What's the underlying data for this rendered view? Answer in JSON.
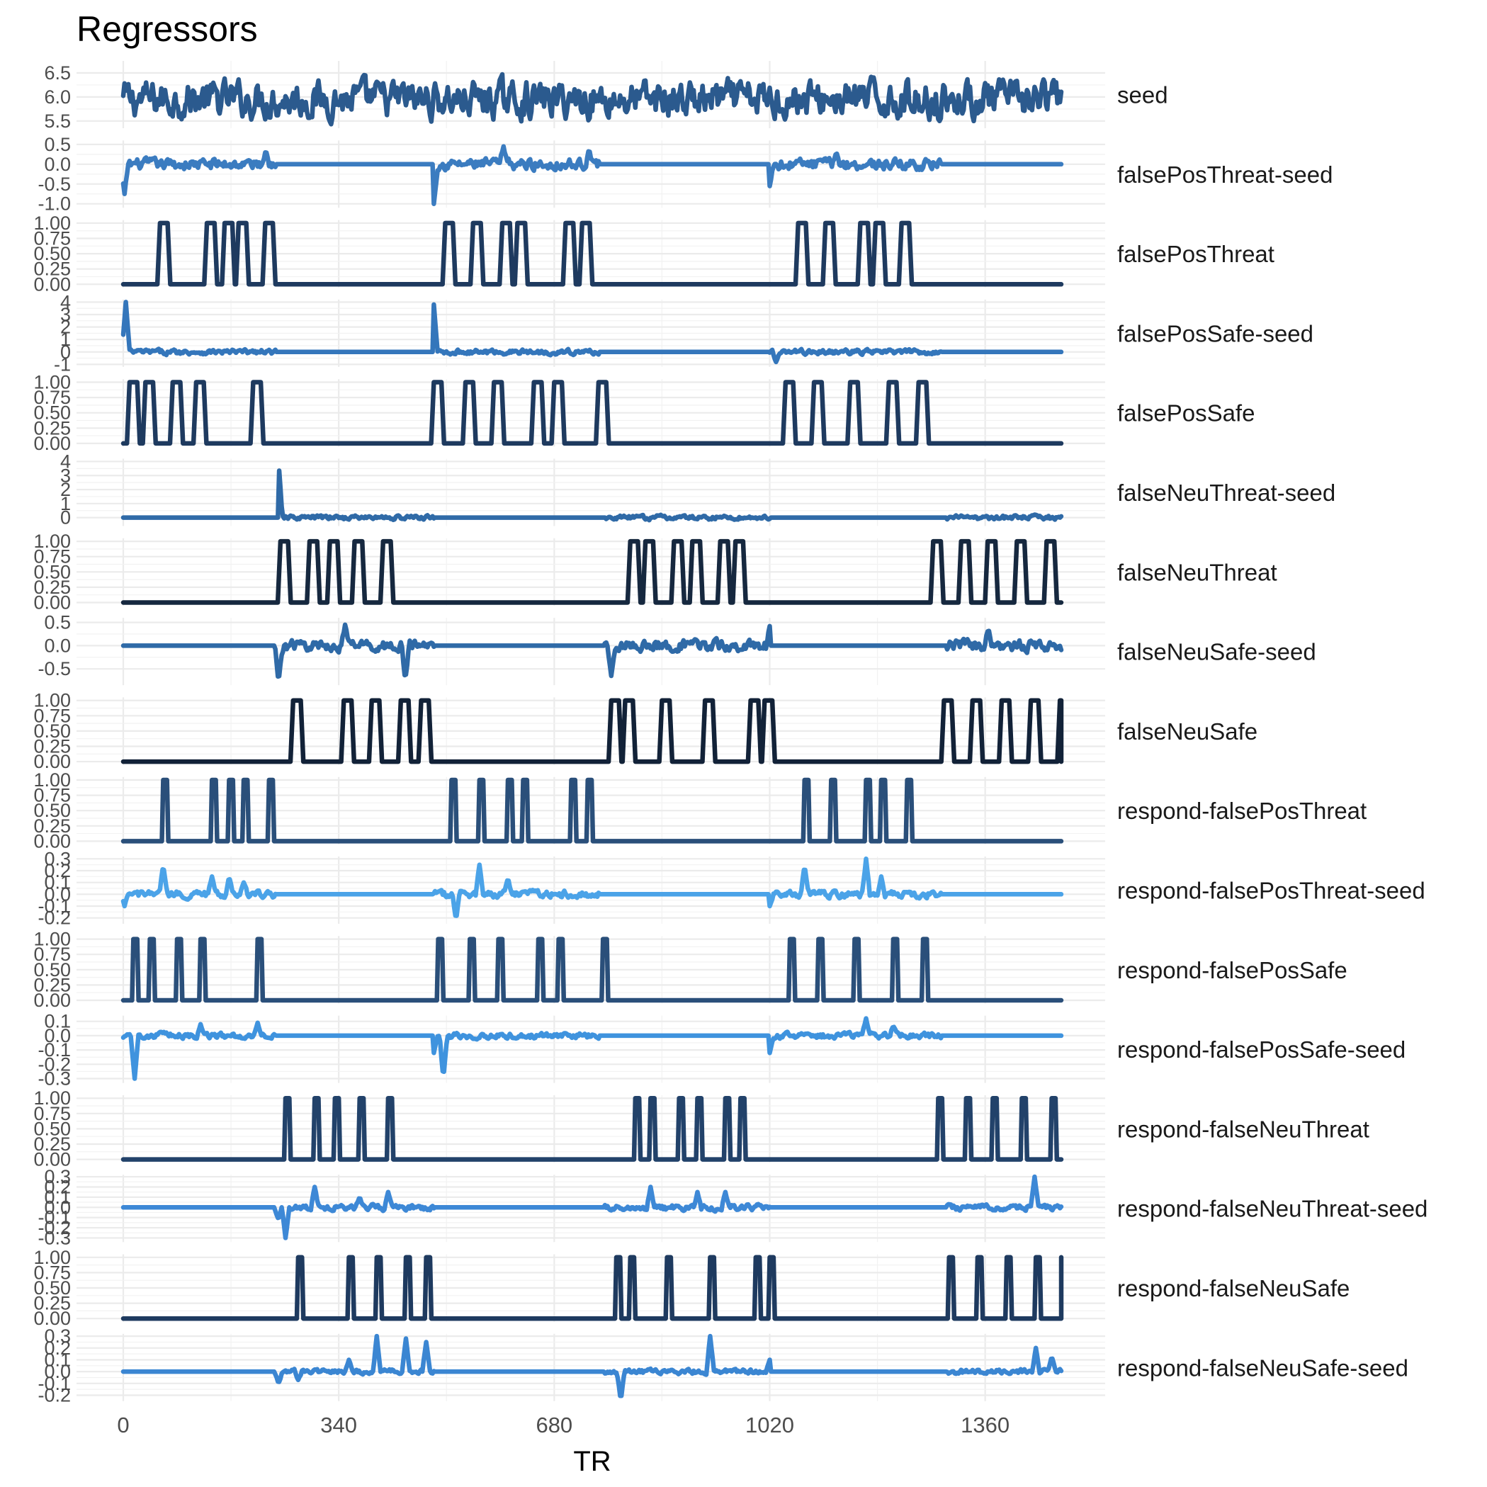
{
  "chart_data": {
    "type": "line",
    "title": "Regressors",
    "xlabel": "TR",
    "ylabel": "",
    "xlim": [
      0,
      1500
    ],
    "x_ticks": [
      0,
      340,
      680,
      1020,
      1360
    ],
    "x_tick_labels": [
      "0",
      "340",
      "680",
      "1020",
      "1360"
    ],
    "grid": true,
    "legend": "none",
    "facets": [
      {
        "name": "seed",
        "kind": "noise",
        "color": "#2b5a8e",
        "ylim": [
          5.35,
          6.75
        ],
        "y_ticks": [
          5.5,
          6.0,
          6.5
        ],
        "y_tick_labels": [
          "5.5",
          "6.0",
          "6.5"
        ],
        "base": 5.95,
        "amp": 0.38,
        "spans": [
          [
            0,
            1490
          ]
        ]
      },
      {
        "name": "falsePosThreat-seed",
        "kind": "noise",
        "color": "#3b7cc0",
        "ylim": [
          -1.1,
          0.6
        ],
        "y_ticks": [
          -1.0,
          -0.5,
          0.0,
          0.5
        ],
        "y_tick_labels": [
          "-1.0",
          "-0.5",
          "0.0",
          "0.5"
        ],
        "base": 0,
        "amp": 0.14,
        "spans": [
          [
            0,
            240
          ],
          [
            490,
            750
          ],
          [
            1020,
            1290
          ]
        ],
        "spikes": [
          [
            2,
            -0.75
          ],
          [
            490,
            -1.0
          ],
          [
            1020,
            -0.55
          ],
          [
            225,
            0.35
          ],
          [
            600,
            0.45
          ],
          [
            735,
            0.38
          ],
          [
            1125,
            0.32
          ]
        ]
      },
      {
        "name": "falsePosThreat",
        "kind": "pulse",
        "color": "#1e3a5f",
        "ylim": [
          -0.05,
          1.05
        ],
        "y_ticks": [
          0.0,
          0.25,
          0.5,
          0.75,
          1.0
        ],
        "y_tick_labels": [
          "0.00",
          "0.25",
          "0.50",
          "0.75",
          "1.00"
        ],
        "pulse_width": 12,
        "events": [
          58,
          132,
          160,
          182,
          224,
          508,
          552,
          598,
          622,
          698,
          724,
          1065,
          1108,
          1163,
          1187,
          1228
        ]
      },
      {
        "name": "falsePosSafe-seed",
        "kind": "noise",
        "color": "#3476bb",
        "ylim": [
          -1.2,
          4.2
        ],
        "y_ticks": [
          -1,
          0,
          1,
          2,
          3,
          4
        ],
        "y_tick_labels": [
          "-1",
          "0",
          "1",
          "2",
          "3",
          "4"
        ],
        "base": 0,
        "amp": 0.2,
        "spans": [
          [
            0,
            240
          ],
          [
            490,
            750
          ],
          [
            1020,
            1290
          ]
        ],
        "spikes": [
          [
            4,
            4.0
          ],
          [
            490,
            3.8
          ],
          [
            1030,
            -0.8
          ]
        ]
      },
      {
        "name": "falsePosSafe",
        "kind": "pulse",
        "color": "#1e3a5f",
        "ylim": [
          -0.05,
          1.05
        ],
        "y_ticks": [
          0.0,
          0.25,
          0.5,
          0.75,
          1.0
        ],
        "y_tick_labels": [
          "0.00",
          "0.25",
          "0.50",
          "0.75",
          "1.00"
        ],
        "pulse_width": 12,
        "events": [
          10,
          35,
          78,
          115,
          205,
          490,
          540,
          585,
          648,
          680,
          750,
          1045,
          1090,
          1147,
          1208,
          1255
        ]
      },
      {
        "name": "falseNeuThreat-seed",
        "kind": "noise",
        "color": "#2f6aa7",
        "ylim": [
          -0.6,
          4.2
        ],
        "y_ticks": [
          0,
          1,
          2,
          3,
          4
        ],
        "y_tick_labels": [
          "0",
          "1",
          "2",
          "3",
          "4"
        ],
        "base": 0,
        "amp": 0.16,
        "spans": [
          [
            245,
            490
          ],
          [
            760,
            1020
          ],
          [
            1300,
            1500
          ]
        ],
        "spikes": [
          [
            245,
            4.0
          ]
        ]
      },
      {
        "name": "falseNeuThreat",
        "kind": "pulse",
        "color": "#16283f",
        "ylim": [
          -0.05,
          1.05
        ],
        "y_ticks": [
          0.0,
          0.25,
          0.5,
          0.75,
          1.0
        ],
        "y_tick_labels": [
          "0.00",
          "0.25",
          "0.50",
          "0.75",
          "1.00"
        ],
        "pulse_width": 12,
        "events": [
          248,
          294,
          326,
          365,
          410,
          800,
          824,
          869,
          898,
          942,
          966,
          1278,
          1322,
          1364,
          1410,
          1457
        ]
      },
      {
        "name": "falseNeuSafe-seed",
        "kind": "noise",
        "color": "#2f6aa7",
        "ylim": [
          -0.85,
          0.6
        ],
        "y_ticks": [
          -0.5,
          0.0,
          0.5
        ],
        "y_tick_labels": [
          "-0.5",
          "0.0",
          "0.5"
        ],
        "base": 0,
        "amp": 0.12,
        "spans": [
          [
            240,
            490
          ],
          [
            760,
            1020
          ],
          [
            1300,
            1500
          ]
        ],
        "spikes": [
          [
            245,
            -0.8
          ],
          [
            445,
            -0.75
          ],
          [
            770,
            -0.65
          ],
          [
            350,
            0.45
          ],
          [
            1020,
            0.42
          ],
          [
            1365,
            0.38
          ]
        ]
      },
      {
        "name": "falseNeuSafe",
        "kind": "pulse",
        "color": "#122238",
        "ylim": [
          -0.05,
          1.05
        ],
        "y_ticks": [
          0.0,
          0.25,
          0.5,
          0.75,
          1.0
        ],
        "y_tick_labels": [
          "0.00",
          "0.25",
          "0.50",
          "0.75",
          "1.00"
        ],
        "pulse_width": 12,
        "events": [
          268,
          348,
          392,
          438,
          470,
          770,
          792,
          850,
          918,
          990,
          1012,
          1295,
          1340,
          1386,
          1432,
          1478
        ]
      },
      {
        "name": "respond-falsePosThreat",
        "kind": "pulse",
        "color": "#2a4f7a",
        "ylim": [
          -0.05,
          1.05
        ],
        "y_ticks": [
          0.0,
          0.25,
          0.5,
          0.75,
          1.0
        ],
        "y_tick_labels": [
          "0.00",
          "0.25",
          "0.50",
          "0.75",
          "1.00"
        ],
        "pulse_width": 6,
        "events": [
          63,
          140,
          167,
          190,
          230,
          518,
          562,
          607,
          631,
          707,
          733,
          1075,
          1117,
          1172,
          1196,
          1237
        ]
      },
      {
        "name": "respond-falsePosThreat-seed",
        "kind": "noise",
        "color": "#4ba3e8",
        "ylim": [
          -0.25,
          0.32
        ],
        "y_ticks": [
          -0.2,
          -0.1,
          0.0,
          0.1,
          0.2,
          0.3
        ],
        "y_tick_labels": [
          "-0.2",
          "-0.1",
          "0.0",
          "0.1",
          "0.2",
          "0.3"
        ],
        "base": 0,
        "amp": 0.03,
        "spans": [
          [
            0,
            240
          ],
          [
            490,
            750
          ],
          [
            1020,
            1290
          ]
        ],
        "spikes": [
          [
            63,
            0.25
          ],
          [
            140,
            0.15
          ],
          [
            167,
            0.15
          ],
          [
            190,
            0.1
          ],
          [
            562,
            0.25
          ],
          [
            607,
            0.14
          ],
          [
            1075,
            0.25
          ],
          [
            1172,
            0.3
          ],
          [
            1196,
            0.15
          ],
          [
            525,
            -0.22
          ],
          [
            2,
            -0.1
          ],
          [
            1020,
            -0.1
          ]
        ]
      },
      {
        "name": "respond-falsePosSafe",
        "kind": "pulse",
        "color": "#2a4f7a",
        "ylim": [
          -0.05,
          1.05
        ],
        "y_ticks": [
          0.0,
          0.25,
          0.5,
          0.75,
          1.0
        ],
        "y_tick_labels": [
          "0.00",
          "0.25",
          "0.50",
          "0.75",
          "1.00"
        ],
        "pulse_width": 6,
        "events": [
          16,
          42,
          85,
          122,
          212,
          497,
          547,
          592,
          655,
          687,
          757,
          1052,
          1097,
          1154,
          1215,
          1262
        ]
      },
      {
        "name": "respond-falsePosSafe-seed",
        "kind": "noise",
        "color": "#3f93de",
        "ylim": [
          -0.33,
          0.14
        ],
        "y_ticks": [
          -0.3,
          -0.2,
          -0.1,
          0.0,
          0.1
        ],
        "y_tick_labels": [
          "-0.3",
          "-0.2",
          "-0.1",
          "0.0",
          "0.1"
        ],
        "base": 0,
        "amp": 0.02,
        "spans": [
          [
            0,
            240
          ],
          [
            490,
            750
          ],
          [
            1020,
            1290
          ]
        ],
        "spikes": [
          [
            18,
            -0.3
          ],
          [
            505,
            -0.3
          ],
          [
            122,
            0.08
          ],
          [
            212,
            0.09
          ],
          [
            1172,
            0.12
          ],
          [
            1215,
            0.07
          ],
          [
            490,
            -0.12
          ],
          [
            1020,
            -0.12
          ]
        ]
      },
      {
        "name": "respond-falseNeuThreat",
        "kind": "pulse",
        "color": "#22426a",
        "ylim": [
          -0.05,
          1.05
        ],
        "y_ticks": [
          0.0,
          0.25,
          0.5,
          0.75,
          1.0
        ],
        "y_tick_labels": [
          "0.00",
          "0.25",
          "0.50",
          "0.75",
          "1.00"
        ],
        "pulse_width": 6,
        "events": [
          256,
          302,
          334,
          373,
          418,
          808,
          832,
          877,
          906,
          950,
          974,
          1286,
          1330,
          1372,
          1418,
          1465
        ]
      },
      {
        "name": "respond-falseNeuThreat-seed",
        "kind": "noise",
        "color": "#3d88d6",
        "ylim": [
          -0.34,
          0.32
        ],
        "y_ticks": [
          -0.3,
          -0.2,
          -0.1,
          0.0,
          0.1,
          0.2,
          0.3
        ],
        "y_tick_labels": [
          "-0.3",
          "-0.2",
          "-0.1",
          "0.0",
          "0.1",
          "0.2",
          "0.3"
        ],
        "base": 0,
        "amp": 0.03,
        "spans": [
          [
            240,
            490
          ],
          [
            760,
            1020
          ],
          [
            1300,
            1500
          ]
        ],
        "spikes": [
          [
            256,
            -0.3
          ],
          [
            302,
            0.2
          ],
          [
            418,
            0.15
          ],
          [
            832,
            0.2
          ],
          [
            906,
            0.15
          ],
          [
            950,
            0.15
          ],
          [
            1438,
            0.3
          ],
          [
            373,
            0.1
          ],
          [
            245,
            -0.12
          ]
        ]
      },
      {
        "name": "respond-falseNeuSafe",
        "kind": "pulse",
        "color": "#1e3a5f",
        "ylim": [
          -0.05,
          1.05
        ],
        "y_ticks": [
          0.0,
          0.25,
          0.5,
          0.75,
          1.0
        ],
        "y_tick_labels": [
          "0.00",
          "0.25",
          "0.50",
          "0.75",
          "1.00"
        ],
        "pulse_width": 6,
        "events": [
          276,
          356,
          400,
          446,
          478,
          778,
          800,
          858,
          926,
          998,
          1020,
          1303,
          1348,
          1394,
          1440,
          1486
        ]
      },
      {
        "name": "respond-falseNeuSafe-seed",
        "kind": "noise",
        "color": "#3b86d2",
        "ylim": [
          -0.25,
          0.32
        ],
        "y_ticks": [
          -0.2,
          -0.1,
          0.0,
          0.1,
          0.2,
          0.3
        ],
        "y_tick_labels": [
          "-0.2",
          "-0.1",
          "0.0",
          "0.1",
          "0.2",
          "0.3"
        ],
        "base": 0,
        "amp": 0.02,
        "spans": [
          [
            240,
            490
          ],
          [
            760,
            1020
          ],
          [
            1300,
            1500
          ]
        ],
        "spikes": [
          [
            400,
            0.3
          ],
          [
            446,
            0.28
          ],
          [
            478,
            0.25
          ],
          [
            356,
            0.1
          ],
          [
            785,
            -0.25
          ],
          [
            926,
            0.3
          ],
          [
            1020,
            0.1
          ],
          [
            1440,
            0.2
          ],
          [
            1465,
            0.13
          ],
          [
            245,
            -0.1
          ],
          [
            276,
            -0.07
          ]
        ]
      }
    ]
  }
}
